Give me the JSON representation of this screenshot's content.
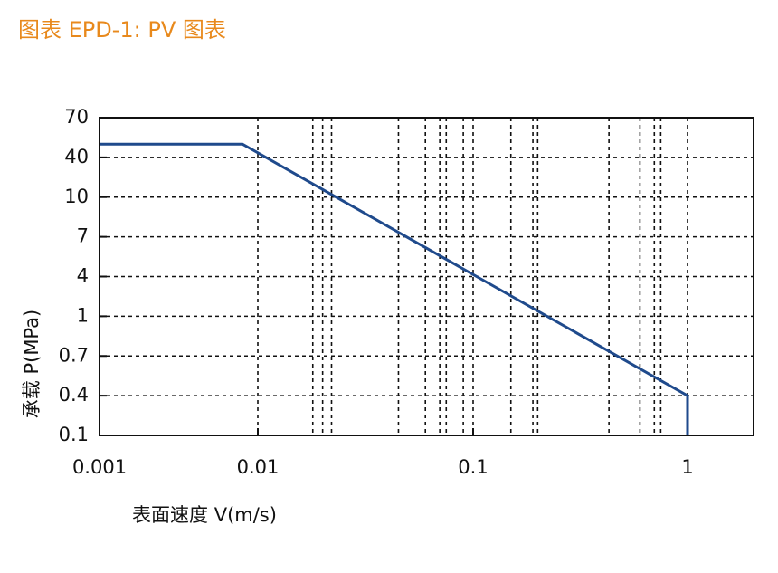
{
  "chart_data": {
    "type": "line",
    "title": "图表 EPD-1: PV 图表",
    "x_label": "表面速度 V(m/s)",
    "y_label": "承载 P(MPa)",
    "x_scale": "log",
    "xlim": [
      0.001,
      2
    ],
    "xticks": [
      0.001,
      0.01,
      0.1,
      1
    ],
    "minor_xticks": [
      0.018,
      0.02,
      0.022,
      0.045,
      0.06,
      0.07,
      0.075,
      0.09,
      0.15,
      0.19,
      0.2,
      0.43,
      0.6,
      0.7,
      0.75
    ],
    "ylim": [
      0.1,
      70
    ],
    "yticks": [
      0.1,
      0.4,
      0.7,
      1,
      4,
      7,
      10,
      40,
      70
    ],
    "grid": true,
    "title_color": "#e8891c",
    "series": [
      {
        "name": "PV",
        "color": "#1f4a8c",
        "x": [
          0.001,
          0.008,
          1,
          1
        ],
        "values": [
          50,
          50,
          0.4,
          0.1
        ]
      }
    ]
  }
}
